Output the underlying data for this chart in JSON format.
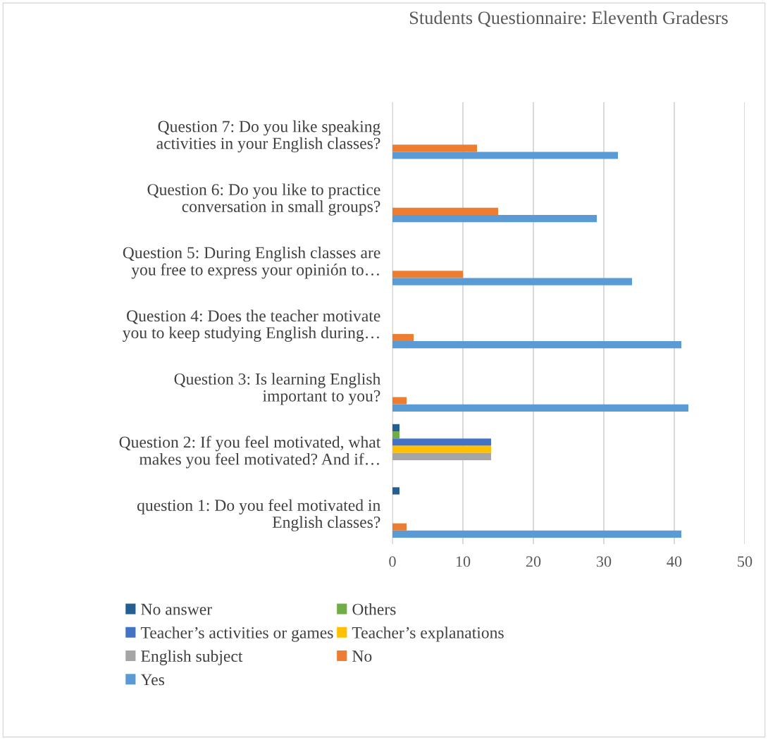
{
  "chart_data": {
    "type": "bar",
    "orientation": "horizontal",
    "title": "Students Questionnaire: Eleventh Gradesrs",
    "categories": [
      "Question 7: Do you like speaking\nactivities in your English classes?",
      "Question 6: Do you like to practice\nconversation in small groups?",
      "Question 5: During English classes are\nyou free to express your opinión to…",
      "Question 4: Does the teacher motivate\nyou to keep studying English during…",
      "Question 3: Is learning English\nimportant to you?",
      "Question 2: If you feel motivated, what\nmakes you feel motivated? And if…",
      "question 1: Do you feel motivated in\nEnglish classes?"
    ],
    "series": [
      {
        "name": "No answer",
        "color": "#255e91",
        "values": [
          null,
          null,
          null,
          null,
          null,
          1,
          1
        ]
      },
      {
        "name": "Others",
        "color": "#70ad47",
        "values": [
          null,
          null,
          null,
          null,
          null,
          1,
          null
        ]
      },
      {
        "name": "Teacher’s activities or games",
        "color": "#4472c4",
        "values": [
          null,
          null,
          null,
          null,
          null,
          14,
          null
        ]
      },
      {
        "name": "Teacher’s explanations",
        "color": "#ffc000",
        "values": [
          null,
          null,
          null,
          null,
          null,
          14,
          null
        ]
      },
      {
        "name": "English subject",
        "color": "#a5a5a5",
        "values": [
          null,
          null,
          null,
          null,
          null,
          14,
          null
        ]
      },
      {
        "name": "No",
        "color": "#ed7d31",
        "values": [
          12,
          15,
          10,
          3,
          2,
          null,
          2
        ]
      },
      {
        "name": "Yes",
        "color": "#5b9bd5",
        "values": [
          32,
          29,
          34,
          41,
          42,
          null,
          41
        ]
      }
    ],
    "xlim": [
      0,
      50
    ],
    "xticks": [
      0,
      10,
      20,
      30,
      40,
      50
    ],
    "grid": "x",
    "legend": "bottom"
  }
}
